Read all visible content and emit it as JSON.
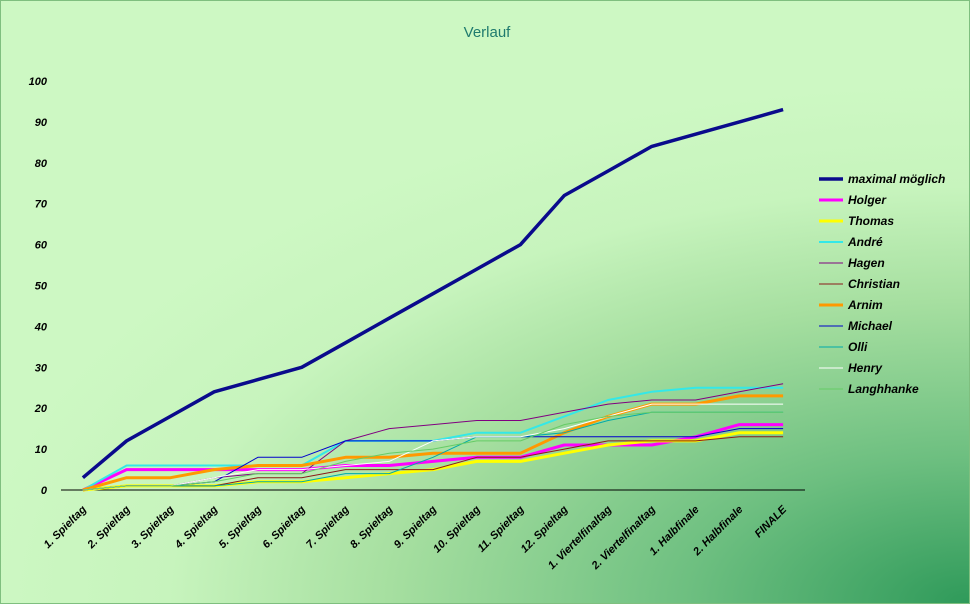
{
  "chart_data": {
    "type": "line",
    "title": "Verlauf",
    "xlabel": "",
    "ylabel": "",
    "ylim": [
      0,
      100
    ],
    "yticks": [
      "0",
      "10",
      "20",
      "30",
      "40",
      "50",
      "60",
      "70",
      "80",
      "90",
      "100"
    ],
    "grid": false,
    "legend_position": "right",
    "categories": [
      "1. Spieltag",
      "2. Spieltag",
      "3. Spieltag",
      "4. Spieltag",
      "5. Spieltag",
      "6. Spieltag",
      "7. Spieltag",
      "8. Spieltag",
      "9. Spieltag",
      "10. Spieltag",
      "11. Spieltag",
      "12. Spieltag",
      "1. Viertelfinaltag",
      "2. Viertelfinaltag",
      "1. Halbfinale",
      "2. Halbfinale",
      "FINALE"
    ],
    "series": [
      {
        "name": "maximal möglich",
        "color": "#0a0a8c",
        "values": [
          3,
          12,
          18,
          24,
          27,
          30,
          36,
          42,
          48,
          54,
          60,
          72,
          78,
          84,
          87,
          90,
          93
        ]
      },
      {
        "name": "Holger",
        "color": "#ff00ff",
        "values": [
          0,
          5,
          5,
          5,
          5,
          5,
          6,
          6,
          7,
          8,
          8,
          11,
          11,
          11,
          13,
          16,
          16
        ]
      },
      {
        "name": "Thomas",
        "color": "#ffff00",
        "values": [
          0,
          1,
          1,
          1,
          2,
          2,
          3,
          4,
          5,
          7,
          7,
          9,
          11,
          12,
          12,
          14,
          14
        ]
      },
      {
        "name": "André",
        "color": "#33e8e8",
        "values": [
          0,
          6,
          6,
          6,
          6,
          6,
          12,
          12,
          12,
          14,
          14,
          18,
          22,
          24,
          25,
          25,
          25
        ]
      },
      {
        "name": "Hagen",
        "color": "#800080",
        "values": [
          0,
          1,
          1,
          3,
          4,
          4,
          12,
          15,
          16,
          17,
          17,
          19,
          21,
          22,
          22,
          24,
          26
        ]
      },
      {
        "name": "Christian",
        "color": "#8b1a1a",
        "values": [
          0,
          1,
          1,
          1,
          3,
          3,
          5,
          5,
          5,
          8,
          8,
          10,
          12,
          12,
          12,
          13,
          13
        ]
      },
      {
        "name": "Arnim",
        "color": "#ff9900",
        "values": [
          0,
          3,
          3,
          5,
          6,
          6,
          8,
          8,
          9,
          9,
          9,
          14,
          18,
          21,
          21,
          23,
          23
        ]
      },
      {
        "name": "Michael",
        "color": "#0000cc",
        "values": [
          0,
          1,
          1,
          2,
          8,
          8,
          12,
          12,
          12,
          13,
          13,
          13,
          13,
          13,
          13,
          15,
          15
        ]
      },
      {
        "name": "Olli",
        "color": "#00aaaa",
        "values": [
          0,
          1,
          1,
          1,
          2,
          2,
          4,
          4,
          8,
          13,
          13,
          14,
          17,
          19,
          19,
          19,
          19
        ]
      },
      {
        "name": "Henry",
        "color": "#ffffff",
        "values": [
          0,
          1,
          1,
          3,
          5,
          5,
          6,
          7,
          12,
          13,
          13,
          15,
          18,
          21,
          21,
          21,
          21
        ]
      },
      {
        "name": "Langhhanke",
        "color": "#66cc66",
        "values": [
          0,
          1,
          1,
          2,
          4,
          4,
          7,
          9,
          10,
          12,
          12,
          16,
          18,
          19,
          19,
          19,
          19
        ]
      }
    ]
  }
}
